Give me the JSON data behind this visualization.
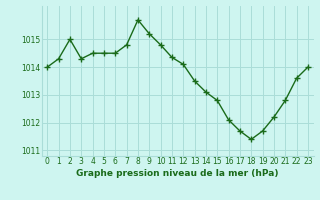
{
  "x": [
    0,
    1,
    2,
    3,
    4,
    5,
    6,
    7,
    8,
    9,
    10,
    11,
    12,
    13,
    14,
    15,
    16,
    17,
    18,
    19,
    20,
    21,
    22,
    23
  ],
  "y": [
    1014.0,
    1014.3,
    1015.0,
    1014.3,
    1014.5,
    1014.5,
    1014.5,
    1014.8,
    1015.7,
    1015.2,
    1014.8,
    1014.35,
    1014.1,
    1013.5,
    1013.1,
    1012.8,
    1012.1,
    1011.7,
    1011.4,
    1011.7,
    1012.2,
    1012.8,
    1013.6,
    1014.0
  ],
  "line_color": "#1a6b1a",
  "marker": "+",
  "markersize": 4,
  "linewidth": 1.0,
  "bg_color": "#cef5f0",
  "grid_color": "#aaddd8",
  "xlabel": "Graphe pression niveau de la mer (hPa)",
  "xlabel_fontsize": 6.5,
  "xlabel_color": "#1a6b1a",
  "tick_color": "#1a6b1a",
  "tick_fontsize": 5.5,
  "ylim": [
    1010.8,
    1016.2
  ],
  "yticks": [
    1011,
    1012,
    1013,
    1014,
    1015
  ],
  "xtick_labels": [
    "0",
    "1",
    "2",
    "3",
    "4",
    "5",
    "6",
    "7",
    "8",
    "9",
    "10",
    "11",
    "12",
    "13",
    "14",
    "15",
    "16",
    "17",
    "18",
    "19",
    "20",
    "21",
    "22",
    "23"
  ]
}
